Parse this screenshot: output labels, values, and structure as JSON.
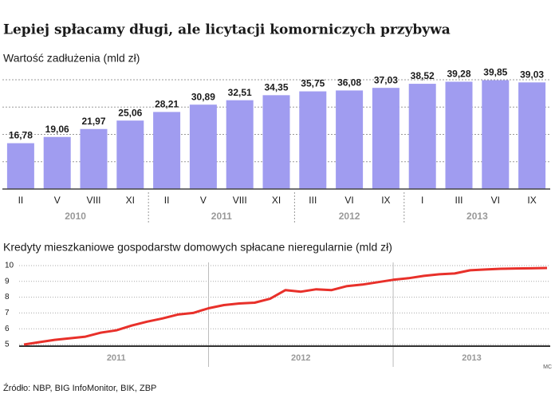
{
  "title": "Lepiej spłacamy długi, ale licytacji komorniczych przybywa",
  "source": "Źródło: NBP, BIG InfoMonitor, BIK, ZBP",
  "credit": "MC",
  "chart_data": [
    {
      "type": "bar",
      "title": "Wartość zadłużenia (mld zł)",
      "categories": [
        "II",
        "V",
        "VIII",
        "XI",
        "II",
        "V",
        "VIII",
        "XI",
        "III",
        "VI",
        "IX",
        "I",
        "III",
        "VI",
        "IX"
      ],
      "values": [
        16.78,
        19.06,
        21.97,
        25.06,
        28.21,
        30.89,
        32.51,
        34.35,
        35.75,
        36.08,
        37.03,
        38.52,
        39.28,
        39.85,
        39.03
      ],
      "value_labels": [
        "16,78",
        "19,06",
        "21,97",
        "25,06",
        "28,21",
        "30,89",
        "32,51",
        "34,35",
        "35,75",
        "36,08",
        "37,03",
        "38,52",
        "39,28",
        "39,85",
        "39,03"
      ],
      "groups": [
        {
          "label": "2010",
          "count": 4
        },
        {
          "label": "2011",
          "count": 4
        },
        {
          "label": "2012",
          "count": 3
        },
        {
          "label": "2013",
          "count": 4
        }
      ],
      "color": "#a09cf0",
      "ylim": [
        0,
        40
      ],
      "yticks": [
        10,
        20,
        30,
        40
      ],
      "grid": true
    },
    {
      "type": "line",
      "title": "Kredyty mieszkaniowe gospodarstw domowych spłacane nieregularnie (mld zł)",
      "categories": [
        null,
        null,
        null,
        null,
        null,
        null,
        null,
        null,
        null,
        null,
        null,
        null,
        null,
        null,
        null,
        null,
        null,
        null,
        null,
        null,
        null,
        null,
        null,
        null,
        null,
        null,
        null,
        null,
        null,
        null,
        null,
        null,
        null,
        null,
        null
      ],
      "series": [
        {
          "name": null,
          "color": "#e8302a",
          "values": [
            5.0,
            5.15,
            5.3,
            5.4,
            5.5,
            5.75,
            5.9,
            6.2,
            6.45,
            6.65,
            6.9,
            7.0,
            7.3,
            7.5,
            7.6,
            7.65,
            7.9,
            8.45,
            8.35,
            8.5,
            8.45,
            8.7,
            8.8,
            8.95,
            9.1,
            9.2,
            9.35,
            9.45,
            9.5,
            9.7,
            9.75,
            9.8,
            9.82,
            9.83,
            9.85
          ]
        }
      ],
      "groups": [
        {
          "label": "2011",
          "count": 12
        },
        {
          "label": "2012",
          "count": 12
        },
        {
          "label": "2013",
          "count": 11
        }
      ],
      "ylim": [
        5,
        10
      ],
      "yticks": [
        5,
        6,
        7,
        8,
        9,
        10
      ],
      "grid": true
    }
  ]
}
